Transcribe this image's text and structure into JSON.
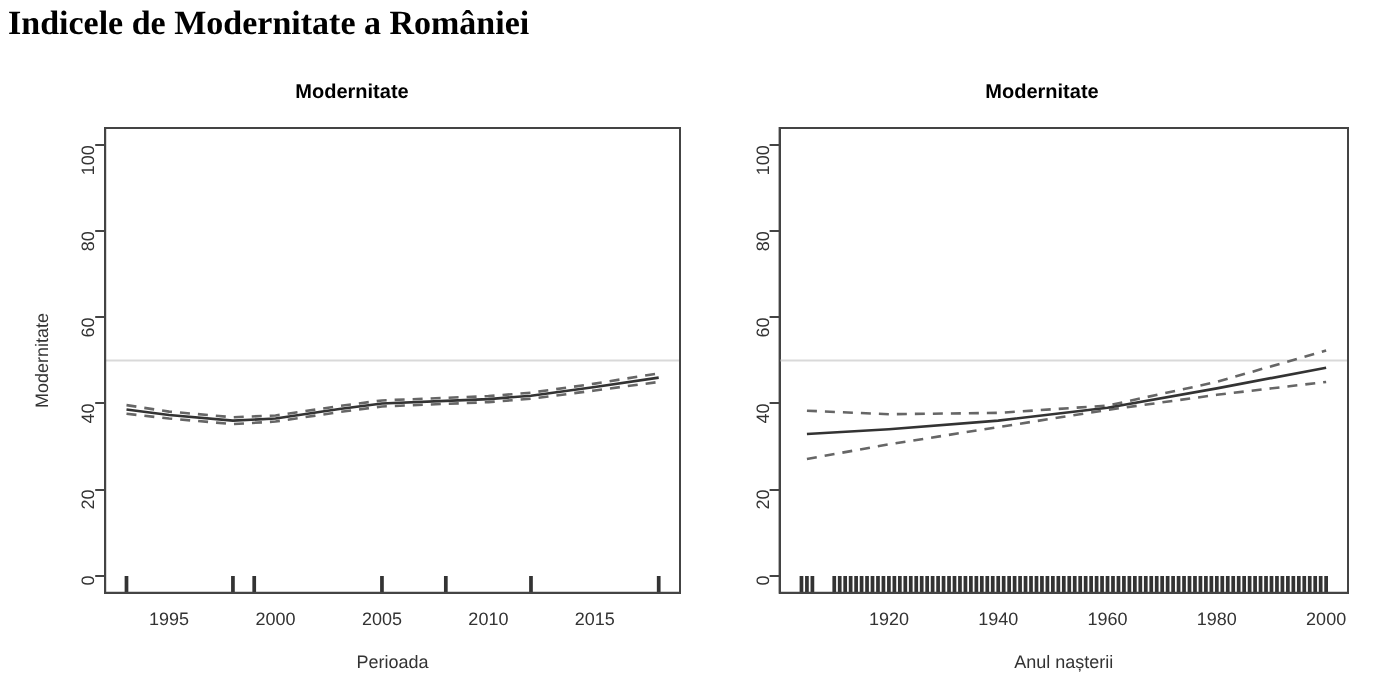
{
  "chart_data": [
    {
      "type": "line",
      "title": "Modernitate",
      "xlabel": "Perioada",
      "ylabel": "Modernitate",
      "annotations": [
        "Indicele de Modernitate a României"
      ],
      "xlim": [
        1992,
        2019
      ],
      "xticks": [
        1995,
        2000,
        2005,
        2010,
        2015
      ],
      "ylim": [
        -4,
        104
      ],
      "yticks": [
        0,
        20,
        40,
        60,
        80,
        100
      ],
      "grid": false,
      "legend": false,
      "marker": "none",
      "ref_lines": [
        {
          "axis": "y",
          "value": 50,
          "color": "#d9d9d9"
        }
      ],
      "series": [
        {
          "color": "#333333",
          "line_style": "solid",
          "x": [
            1993,
            1995,
            1998,
            2000,
            2003,
            2005,
            2008,
            2010,
            2012,
            2015,
            2018
          ],
          "values": [
            38.6,
            37.3,
            36,
            36.5,
            38.7,
            40,
            40.6,
            41,
            41.8,
            43.8,
            46
          ]
        },
        {
          "color": "#666666",
          "line_style": "dashed",
          "x": [
            1993,
            1995,
            1998,
            2000,
            2003,
            2005,
            2008,
            2010,
            2012,
            2015,
            2018
          ],
          "values": [
            39.6,
            38.1,
            36.8,
            37.2,
            39.4,
            40.7,
            41.3,
            41.7,
            42.5,
            44.6,
            47
          ]
        },
        {
          "color": "#666666",
          "line_style": "dashed",
          "x": [
            1993,
            1995,
            1998,
            2000,
            2003,
            2005,
            2008,
            2010,
            2012,
            2015,
            2018
          ],
          "values": [
            37.6,
            36.5,
            35.2,
            35.8,
            38,
            39.3,
            39.9,
            40.3,
            41.1,
            43,
            45
          ]
        },
        {
          "type": "bar",
          "color": "#333333",
          "x": [
            1993,
            1998,
            1999,
            2005,
            2008,
            2012,
            2018
          ],
          "base": [
            -4,
            -4,
            -4,
            -4,
            -4,
            -4,
            -4
          ],
          "values": [
            4,
            4,
            4,
            4,
            4,
            4,
            4
          ]
        }
      ]
    },
    {
      "type": "line",
      "title": "Modernitate",
      "xlabel": "Anul nașterii",
      "xlim": [
        1900,
        2004
      ],
      "xticks": [
        1920,
        1940,
        1960,
        1980,
        2000
      ],
      "ylim": [
        -4,
        104
      ],
      "yticks": [
        0,
        20,
        40,
        60,
        80,
        100
      ],
      "grid": false,
      "legend": false,
      "marker": "none",
      "ref_lines": [
        {
          "axis": "y",
          "value": 50,
          "color": "#d9d9d9"
        }
      ],
      "series": [
        {
          "color": "#333333",
          "line_style": "solid",
          "x": [
            1905,
            1920,
            1940,
            1960,
            1980,
            2000
          ],
          "values": [
            32.9,
            34,
            36,
            39,
            43.5,
            48.3
          ]
        },
        {
          "color": "#666666",
          "line_style": "dashed",
          "x": [
            1905,
            1920,
            1940,
            1960,
            1980,
            2000
          ],
          "values": [
            38.3,
            37.5,
            37.8,
            39.5,
            45,
            52.3
          ]
        },
        {
          "color": "#666666",
          "line_style": "dashed",
          "x": [
            1905,
            1920,
            1940,
            1960,
            1980,
            2000
          ],
          "values": [
            27.1,
            30.5,
            34.5,
            38.5,
            42,
            45
          ]
        },
        {
          "type": "bar",
          "color": "#333333",
          "base": [
            -4,
            -4,
            -4,
            -4,
            -4,
            -4,
            -4,
            -4,
            -4,
            -4,
            -4,
            -4,
            -4,
            -4,
            -4,
            -4,
            -4,
            -4,
            -4,
            -4,
            -4,
            -4,
            -4,
            -4,
            -4,
            -4,
            -4,
            -4,
            -4,
            -4,
            -4,
            -4,
            -4,
            -4,
            -4,
            -4,
            -4,
            -4,
            -4,
            -4,
            -4,
            -4,
            -4,
            -4,
            -4,
            -4,
            -4,
            -4,
            -4,
            -4,
            -4,
            -4,
            -4,
            -4,
            -4,
            -4,
            -4,
            -4,
            -4,
            -4,
            -4,
            -4,
            -4,
            -4,
            -4,
            -4,
            -4,
            -4,
            -4,
            -4,
            -4,
            -4,
            -4,
            -4,
            -4,
            -4,
            -4,
            -4,
            -4,
            -4,
            -4,
            -4,
            -4,
            -4,
            -4,
            -4,
            -4,
            -4,
            -4,
            -4,
            -4,
            -4,
            -4,
            -4
          ],
          "x": [
            1904,
            1905,
            1906,
            1910,
            1911,
            1912,
            1913,
            1914,
            1915,
            1916,
            1917,
            1918,
            1919,
            1920,
            1921,
            1922,
            1923,
            1924,
            1925,
            1926,
            1927,
            1928,
            1929,
            1930,
            1931,
            1932,
            1933,
            1934,
            1935,
            1936,
            1937,
            1938,
            1939,
            1940,
            1941,
            1942,
            1943,
            1944,
            1945,
            1946,
            1947,
            1948,
            1949,
            1950,
            1951,
            1952,
            1953,
            1954,
            1955,
            1956,
            1957,
            1958,
            1959,
            1960,
            1961,
            1962,
            1963,
            1964,
            1965,
            1966,
            1967,
            1968,
            1969,
            1970,
            1971,
            1972,
            1973,
            1974,
            1975,
            1976,
            1977,
            1978,
            1979,
            1980,
            1981,
            1982,
            1983,
            1984,
            1985,
            1986,
            1987,
            1988,
            1989,
            1990,
            1991,
            1992,
            1993,
            1994,
            1995,
            1996,
            1997,
            1998,
            1999,
            2000
          ],
          "values": [
            4,
            4,
            4,
            4,
            4,
            4,
            4,
            4,
            4,
            4,
            4,
            4,
            4,
            4,
            4,
            4,
            4,
            4,
            4,
            4,
            4,
            4,
            4,
            4,
            4,
            4,
            4,
            4,
            4,
            4,
            4,
            4,
            4,
            4,
            4,
            4,
            4,
            4,
            4,
            4,
            4,
            4,
            4,
            4,
            4,
            4,
            4,
            4,
            4,
            4,
            4,
            4,
            4,
            4,
            4,
            4,
            4,
            4,
            4,
            4,
            4,
            4,
            4,
            4,
            4,
            4,
            4,
            4,
            4,
            4,
            4,
            4,
            4,
            4,
            4,
            4,
            4,
            4,
            4,
            4,
            4,
            4,
            4,
            4,
            4,
            4,
            4,
            4,
            4,
            4,
            4,
            4,
            4,
            4
          ]
        }
      ]
    }
  ]
}
